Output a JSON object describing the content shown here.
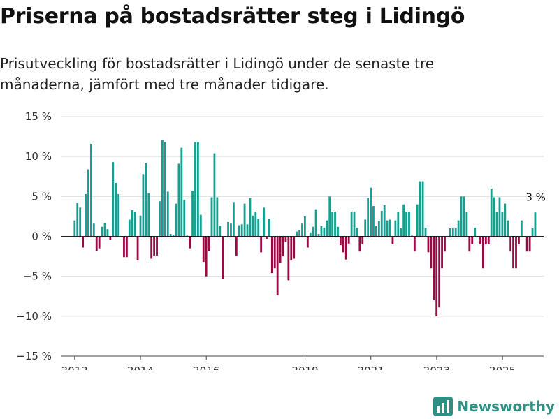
{
  "title": "Priserna på bostadsrätter steg i Lidingö",
  "subtitle": "Prisutveckling för bostadsrätter i Lidingö under de senaste tre månaderna, jämfört med tre månader tidigare.",
  "brand": {
    "name": "Newsworthy"
  },
  "colors": {
    "positive": "#14a091",
    "negative": "#9b0844",
    "grid": "#dedede",
    "axis": "#444444"
  },
  "chart_data": {
    "type": "bar",
    "ylim": [
      -15,
      15
    ],
    "xlim": [
      2011.6,
      2026.25
    ],
    "y_ticks": [
      15,
      10,
      5,
      0,
      -5,
      -10,
      -15
    ],
    "y_tick_labels": [
      "15 %",
      "10 %",
      "5 %",
      "0 %",
      "−5 %",
      "−10 %",
      "−15 %"
    ],
    "x_ticks": [
      2012,
      2014,
      2016,
      2019,
      2021,
      2023,
      2025
    ],
    "x_tick_labels": [
      "2012",
      "2014",
      "2016",
      "2019",
      "2021",
      "2023",
      "2025"
    ],
    "end_label": "3 %",
    "grid": true,
    "x_start": 2012.0,
    "x_step": 0.0833,
    "values": [
      2,
      4.2,
      3.6,
      -1.4,
      5.3,
      8.4,
      11.6,
      1.6,
      -1.8,
      -1.5,
      1.2,
      1.7,
      0.9,
      -0.4,
      9.3,
      6.7,
      5.3,
      0,
      -2.6,
      -2.6,
      2.1,
      3.3,
      3.1,
      -3,
      2.6,
      7.8,
      9.2,
      5.4,
      -2.8,
      -2.4,
      -2.4,
      4.4,
      12.1,
      11.8,
      5.6,
      0.3,
      0.2,
      4.1,
      9.1,
      11.1,
      4.6,
      0.1,
      -1.5,
      5.7,
      11.8,
      11.8,
      2.7,
      -3.2,
      -5,
      -1.8,
      4.9,
      10.4,
      4.9,
      1.3,
      -5.3,
      -0.1,
      1.8,
      1.6,
      4.3,
      -2.4,
      1.4,
      1.5,
      4.1,
      1.5,
      4.8,
      2.6,
      3.1,
      2.2,
      -2,
      3.6,
      -0.3,
      2.2,
      -4.6,
      -4,
      -7.4,
      -3.3,
      -2.5,
      -0.7,
      -5.5,
      -3,
      -2.8,
      0.6,
      0.8,
      1.6,
      2.5,
      -1.4,
      0.5,
      1.2,
      3.4,
      0.3,
      1.3,
      1.1,
      2,
      5,
      3.1,
      3.1,
      1.2,
      -1.1,
      -2,
      -2.9,
      -0.9,
      3.1,
      3.1,
      1.1,
      -1.9,
      -1,
      2.1,
      4.8,
      6.1,
      3.8,
      1.3,
      1.9,
      3.2,
      3.9,
      2,
      2.1,
      -1,
      2,
      3.1,
      1,
      4,
      3.1,
      3.1,
      0.1,
      -1.9,
      4,
      6.9,
      6.9,
      1.1,
      -2,
      -4,
      -8,
      -10,
      -8.9,
      -4,
      -1.9,
      0,
      1,
      1,
      1,
      2,
      5,
      5,
      3.1,
      -1.9,
      -1,
      1.1,
      0,
      -1,
      -4,
      -1,
      -1,
      6,
      4.9,
      3.1,
      4.9,
      3.1,
      4.1,
      2,
      -1.9,
      -4,
      -4,
      -1,
      2,
      0,
      -1.9,
      -1.9,
      1,
      3
    ]
  }
}
